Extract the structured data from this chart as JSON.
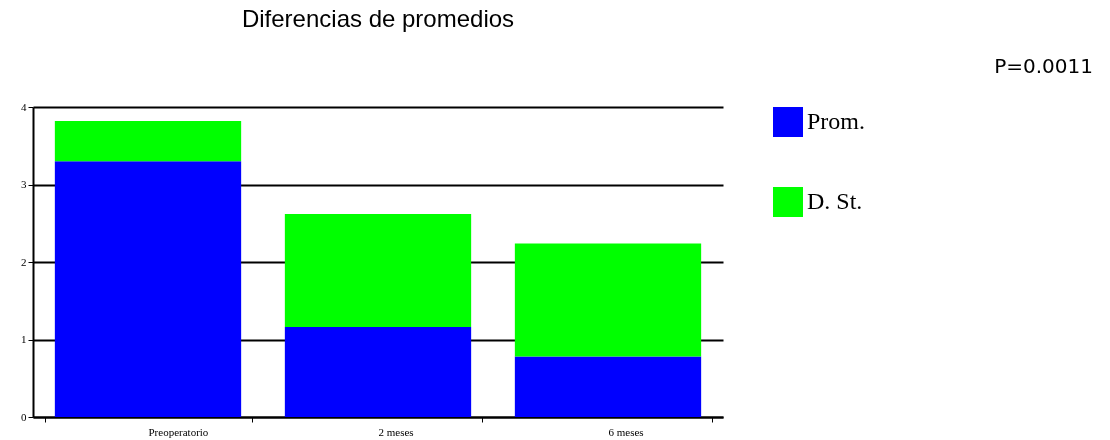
{
  "chart_data": {
    "type": "bar",
    "title": "Diferencias de promedios",
    "categories": [
      "Preoperatorio",
      "2 meses",
      "6 meses"
    ],
    "series": [
      {
        "name": "Prom.",
        "color": "#0000ff",
        "values": [
          3.3,
          1.16,
          0.78
        ]
      },
      {
        "name": "D. St.",
        "color": "#00ff00",
        "values": [
          0.52,
          1.46,
          1.46
        ]
      }
    ],
    "stacked": true,
    "ylim": [
      0,
      4
    ],
    "yticks": [
      0,
      1,
      2,
      3,
      4
    ],
    "grid": "y",
    "legend": "right",
    "annotations": [
      "P=0.0011"
    ]
  }
}
